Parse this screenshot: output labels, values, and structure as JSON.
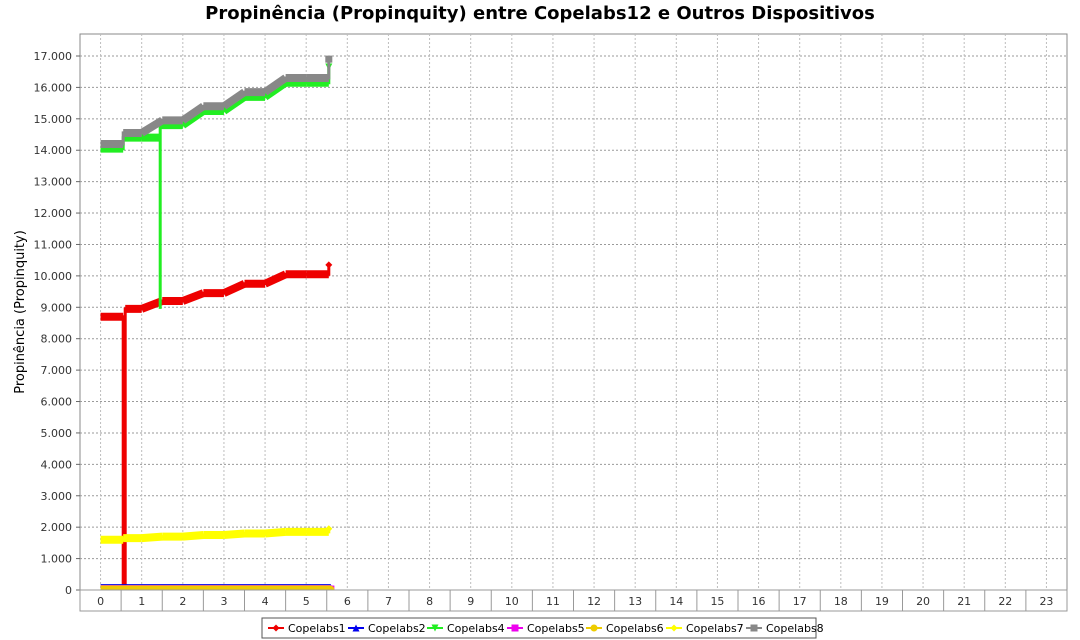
{
  "chart_data": {
    "type": "line",
    "title": "Propinência (Propinquity) entre Copelabs12 e Outros Dispositivos",
    "ylabel": "Propinência (Propinquity)",
    "xlabel": "",
    "categories": [
      "0",
      "1",
      "2",
      "3",
      "4",
      "5",
      "6",
      "7",
      "8",
      "9",
      "10",
      "11",
      "12",
      "13",
      "14",
      "15",
      "16",
      "17",
      "18",
      "19",
      "20",
      "21",
      "22",
      "23"
    ],
    "yticks": [
      0,
      1000,
      2000,
      3000,
      4000,
      5000,
      6000,
      7000,
      8000,
      9000,
      10000,
      11000,
      12000,
      13000,
      14000,
      15000,
      16000,
      17000
    ],
    "ytick_labels": [
      "0",
      "1.000",
      "2.000",
      "3.000",
      "4.000",
      "5.000",
      "6.000",
      "7.000",
      "8.000",
      "9.000",
      "10.000",
      "11.000",
      "12.000",
      "13.000",
      "14.000",
      "15.000",
      "16.000",
      "17.000"
    ],
    "ylim": [
      0,
      17700
    ],
    "grid": true,
    "legend_position": "bottom",
    "series": [
      {
        "name": "Copelabs1",
        "color": "#ee0000",
        "marker": "diamond",
        "steps": [
          [
            0,
            8700
          ],
          [
            0.55,
            8700
          ],
          [
            0.55,
            0
          ],
          [
            0.6,
            0
          ],
          [
            0.6,
            8950
          ],
          [
            1,
            8950
          ],
          [
            1.5,
            9200
          ],
          [
            2,
            9200
          ],
          [
            2.5,
            9450
          ],
          [
            3,
            9450
          ],
          [
            3.5,
            9750
          ],
          [
            4,
            9750
          ],
          [
            4.5,
            10050
          ],
          [
            5,
            10050
          ],
          [
            5.55,
            10050
          ],
          [
            5.55,
            10350
          ]
        ]
      },
      {
        "name": "Copelabs2",
        "color": "#0000ee",
        "marker": "triangle-up",
        "steps": [
          [
            0,
            60
          ],
          [
            5.6,
            60
          ]
        ]
      },
      {
        "name": "Copelabs4",
        "color": "#22ee22",
        "marker": "triangle-down",
        "steps": [
          [
            0,
            14050
          ],
          [
            0.55,
            14050
          ],
          [
            0.55,
            14400
          ],
          [
            1,
            14400
          ],
          [
            1.45,
            14400
          ],
          [
            1.45,
            8950
          ],
          [
            1.45,
            14800
          ],
          [
            2,
            14800
          ],
          [
            2.5,
            15250
          ],
          [
            3,
            15250
          ],
          [
            3.5,
            15700
          ],
          [
            4,
            15700
          ],
          [
            4.5,
            16150
          ],
          [
            5,
            16150
          ],
          [
            5.55,
            16150
          ],
          [
            5.55,
            16650
          ]
        ]
      },
      {
        "name": "Copelabs5",
        "color": "#ee00ee",
        "marker": "square",
        "steps": [
          [
            0,
            30
          ],
          [
            5.6,
            30
          ]
        ]
      },
      {
        "name": "Copelabs6",
        "color": "#eecc00",
        "marker": "circle",
        "steps": [
          [
            0,
            20
          ],
          [
            5.6,
            20
          ]
        ]
      },
      {
        "name": "Copelabs7",
        "color": "#ffff00",
        "marker": "diamond",
        "steps": [
          [
            0,
            1600
          ],
          [
            0.55,
            1600
          ],
          [
            0.55,
            1650
          ],
          [
            1,
            1650
          ],
          [
            1.5,
            1700
          ],
          [
            2,
            1700
          ],
          [
            2.5,
            1750
          ],
          [
            3,
            1750
          ],
          [
            3.5,
            1800
          ],
          [
            4,
            1800
          ],
          [
            4.5,
            1850
          ],
          [
            5,
            1850
          ],
          [
            5.55,
            1850
          ],
          [
            5.55,
            1950
          ]
        ]
      },
      {
        "name": "Copelabs8",
        "color": "#888888",
        "marker": "square",
        "steps": [
          [
            0,
            14200
          ],
          [
            0.55,
            14200
          ],
          [
            0.55,
            14550
          ],
          [
            1,
            14550
          ],
          [
            1.5,
            14950
          ],
          [
            2,
            14950
          ],
          [
            2.5,
            15400
          ],
          [
            3,
            15400
          ],
          [
            3.5,
            15850
          ],
          [
            4,
            15850
          ],
          [
            4.5,
            16300
          ],
          [
            5,
            16300
          ],
          [
            5.55,
            16300
          ],
          [
            5.55,
            16900
          ]
        ]
      }
    ]
  }
}
